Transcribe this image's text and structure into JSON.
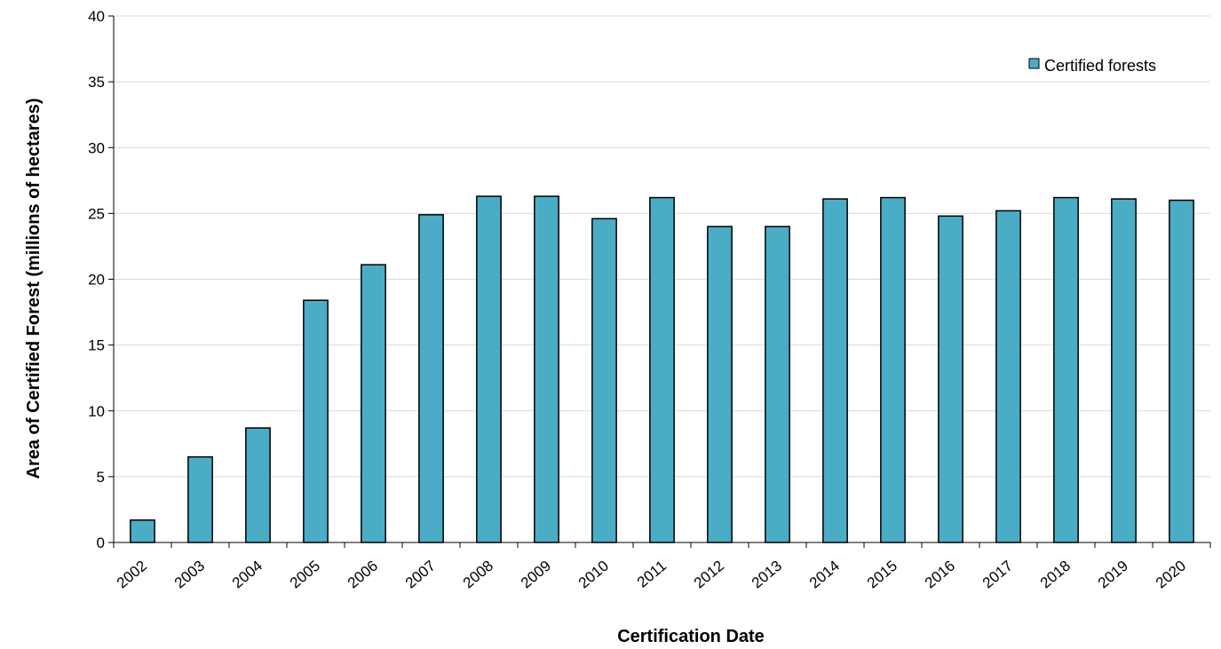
{
  "chart_data": {
    "type": "bar",
    "title": "",
    "xlabel": "Certification Date",
    "ylabel": "Area of Certified Forest (millions of hectares)",
    "ylim": [
      0,
      40
    ],
    "yticks": [
      0,
      5,
      10,
      15,
      20,
      25,
      30,
      35,
      40
    ],
    "grid": true,
    "legend_position": "top-right",
    "categories": [
      "2002",
      "2003",
      "2004",
      "2005",
      "2006",
      "2007",
      "2008",
      "2009",
      "2010",
      "2011",
      "2012",
      "2013",
      "2014",
      "2015",
      "2016",
      "2017",
      "2018",
      "2019",
      "2020"
    ],
    "series": [
      {
        "name": "Certified forests",
        "color": "#4BACC6",
        "values": [
          1.7,
          6.5,
          8.7,
          18.4,
          21.1,
          24.9,
          26.3,
          26.3,
          24.6,
          26.2,
          24.0,
          24.0,
          26.1,
          26.2,
          24.8,
          25.2,
          26.2,
          26.1,
          26.0
        ]
      }
    ]
  }
}
